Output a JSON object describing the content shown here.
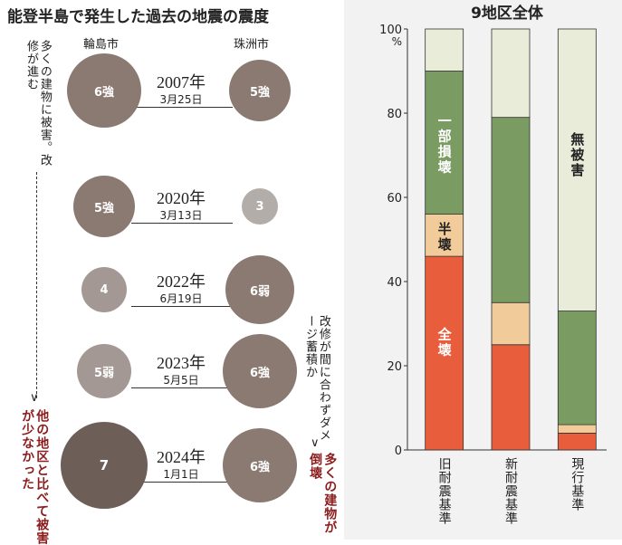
{
  "left": {
    "title": "能登半島で発生した過去の地震の震度",
    "city_a": "輪島市",
    "city_b": "珠洲市",
    "note_top": "多くの建物に被害。改修が進む",
    "note_mid": "改修が間に合わずダメージ蓄積か",
    "note_bottom_left": "他の地区と比べて被害が少なかった",
    "note_bottom_right": "多くの建物が倒壊",
    "colors": {
      "strong": "#8a7a72",
      "weak": "#a39893",
      "light": "#b3adaa",
      "darkest": "#6e5e58"
    },
    "events": [
      {
        "year": "2007年",
        "date": "3月25日",
        "wajima": "6強",
        "suzu": "5強"
      },
      {
        "year": "2020年",
        "date": "3月13日",
        "wajima": "5強",
        "suzu": "3"
      },
      {
        "year": "2022年",
        "date": "6月19日",
        "wajima": "4",
        "suzu": "6弱"
      },
      {
        "year": "2023年",
        "date": "5月5日",
        "wajima": "5弱",
        "suzu": "6強"
      },
      {
        "year": "2024年",
        "date": "1月1日",
        "wajima": "7",
        "suzu": "6強"
      }
    ]
  },
  "chart_data": {
    "type": "bar",
    "stacked": true,
    "title": "9地区全体",
    "ylim": [
      0,
      100
    ],
    "yticks": [
      "0",
      "20",
      "40",
      "60",
      "80",
      "100"
    ],
    "yunit": "%",
    "categories": [
      "旧耐震基準",
      "新耐震基準",
      "現行基準"
    ],
    "series": [
      {
        "name": "全壊",
        "color": "#e85d3b",
        "values": [
          46,
          25,
          4
        ]
      },
      {
        "name": "半壊",
        "color": "#f1cc9a",
        "values": [
          10,
          10,
          2
        ]
      },
      {
        "name": "一部損壊",
        "color": "#7a9b62",
        "values": [
          34,
          44,
          27
        ]
      },
      {
        "name": "無被害",
        "color": "#e8ecd9",
        "values": [
          10,
          21,
          67
        ]
      }
    ]
  }
}
